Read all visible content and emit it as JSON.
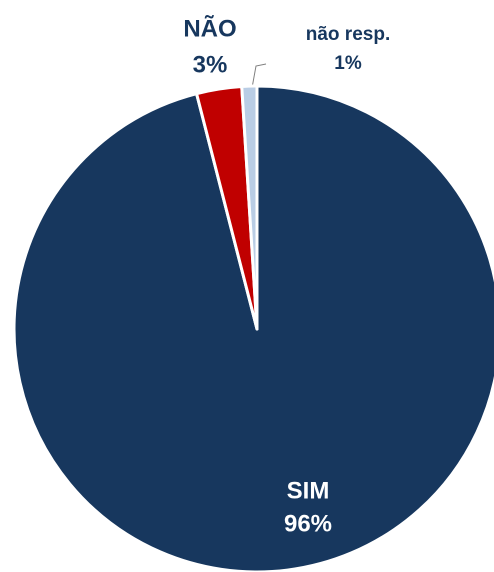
{
  "chart_data": {
    "type": "pie",
    "categories": [
      "SIM",
      "NÃO",
      "não resp."
    ],
    "values": [
      96,
      3,
      1
    ],
    "value_labels": [
      "96%",
      "3%",
      "1%"
    ],
    "colors": [
      "#17375e",
      "#c00000",
      "#b9cde5"
    ]
  }
}
